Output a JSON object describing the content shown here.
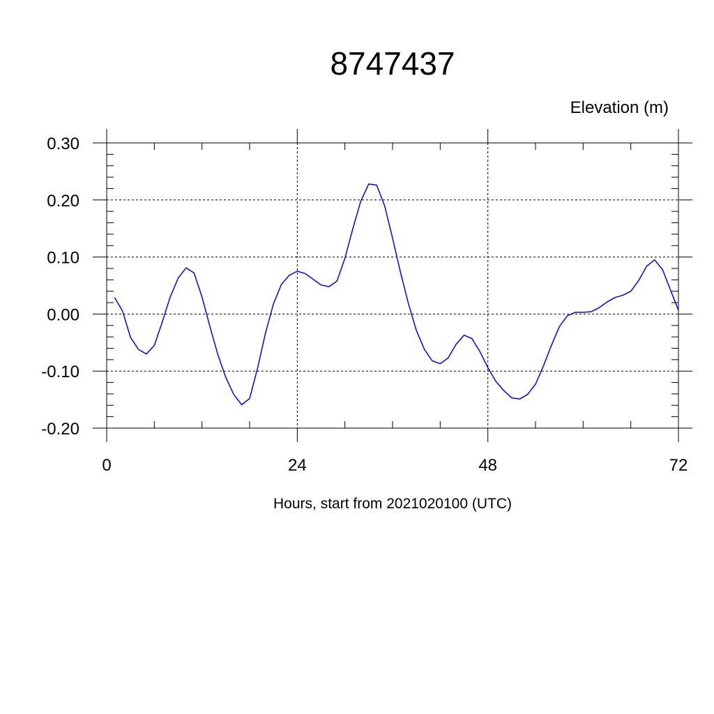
{
  "chart_data": {
    "type": "line",
    "title": "8747437",
    "ylabel": "Elevation (m)",
    "xlabel": "Hours, start from 2021020100 (UTC)",
    "xlim": [
      0,
      72
    ],
    "ylim": [
      -0.2,
      0.3
    ],
    "xticks": [
      0,
      24,
      48,
      72
    ],
    "xtick_labels": [
      "0",
      "24",
      "48",
      "72"
    ],
    "yticks": [
      -0.2,
      -0.1,
      0.0,
      0.1,
      0.2,
      0.3
    ],
    "ytick_labels": [
      "-0.20",
      "-0.10",
      "0.00",
      "0.10",
      "0.20",
      "0.30"
    ],
    "grid": true,
    "line_color": "#0000ff",
    "series": [
      {
        "x": [
          1,
          2,
          3,
          4,
          5,
          6,
          7,
          8,
          9,
          10,
          11,
          12,
          13,
          14,
          15,
          16,
          17,
          18,
          19,
          20,
          21,
          22,
          23,
          24,
          25,
          26,
          27,
          28,
          29,
          30,
          31,
          32,
          33,
          34,
          35,
          36,
          37,
          38,
          39,
          40,
          41,
          42,
          43,
          44,
          45,
          46,
          47,
          48,
          49,
          50,
          51,
          52,
          53,
          54,
          55,
          56,
          57,
          58,
          59,
          60,
          61,
          62,
          63,
          64,
          65,
          66,
          67,
          68,
          69,
          70,
          71,
          72
        ],
        "values": [
          0.029,
          0.005,
          -0.041,
          -0.062,
          -0.07,
          -0.055,
          -0.014,
          0.03,
          0.063,
          0.081,
          0.072,
          0.03,
          -0.022,
          -0.071,
          -0.111,
          -0.141,
          -0.159,
          -0.148,
          -0.095,
          -0.033,
          0.018,
          0.052,
          0.068,
          0.075,
          0.071,
          0.061,
          0.051,
          0.048,
          0.058,
          0.098,
          0.15,
          0.198,
          0.228,
          0.226,
          0.19,
          0.133,
          0.073,
          0.018,
          -0.029,
          -0.062,
          -0.082,
          -0.087,
          -0.077,
          -0.053,
          -0.037,
          -0.043,
          -0.066,
          -0.094,
          -0.118,
          -0.134,
          -0.147,
          -0.149,
          -0.141,
          -0.123,
          -0.091,
          -0.055,
          -0.022,
          -0.003,
          0.003,
          0.003,
          0.004,
          0.011,
          0.021,
          0.029,
          0.033,
          0.04,
          0.059,
          0.084,
          0.095,
          0.078,
          0.042,
          0.007
        ]
      }
    ]
  }
}
